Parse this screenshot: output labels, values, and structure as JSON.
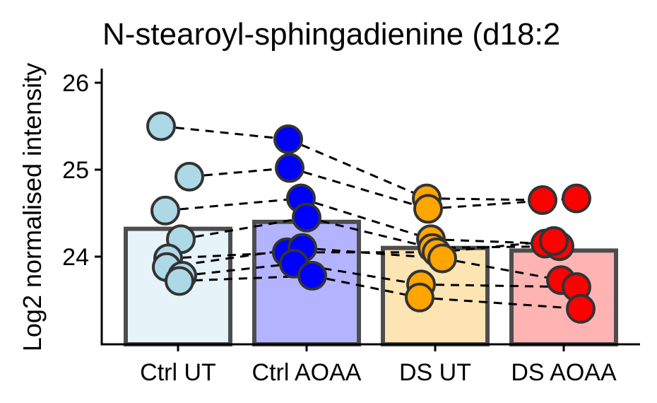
{
  "chart_data": {
    "type": "bar",
    "title": "N-stearoyl-sphingadienine (d18:2",
    "xlabel": "",
    "ylabel": "Log2 normalised intensity",
    "ylim": [
      23.0,
      26.15
    ],
    "yticks": [
      24,
      25,
      26
    ],
    "categories": [
      "Ctrl UT",
      "Ctrl AOAA",
      "DS UT",
      "DS AOAA"
    ],
    "bar_values": [
      24.32,
      24.4,
      24.1,
      24.07
    ],
    "bar_fill_colors": [
      "#e6f3f8",
      "#b3b3ff",
      "#fde4b3",
      "#ffb3b3"
    ],
    "point_colors": [
      "#add8e6",
      "#0000ff",
      "#ffa500",
      "#ff0000"
    ],
    "series": [
      {
        "values": [
          25.5,
          25.35,
          24.67,
          24.65
        ]
      },
      {
        "values": [
          24.92,
          25.02,
          24.55,
          24.67
        ]
      },
      {
        "values": [
          24.53,
          24.67,
          24.2,
          24.15
        ]
      },
      {
        "values": [
          24.2,
          24.45,
          24.1,
          24.12
        ]
      },
      {
        "values": [
          23.98,
          24.05,
          24.05,
          24.18
        ]
      },
      {
        "values": [
          23.88,
          24.1,
          23.98,
          23.73
        ]
      },
      {
        "values": [
          23.78,
          23.92,
          23.68,
          23.65
        ]
      },
      {
        "values": [
          23.72,
          23.78,
          23.53,
          23.4
        ]
      }
    ],
    "grid": false,
    "legend": "none"
  }
}
